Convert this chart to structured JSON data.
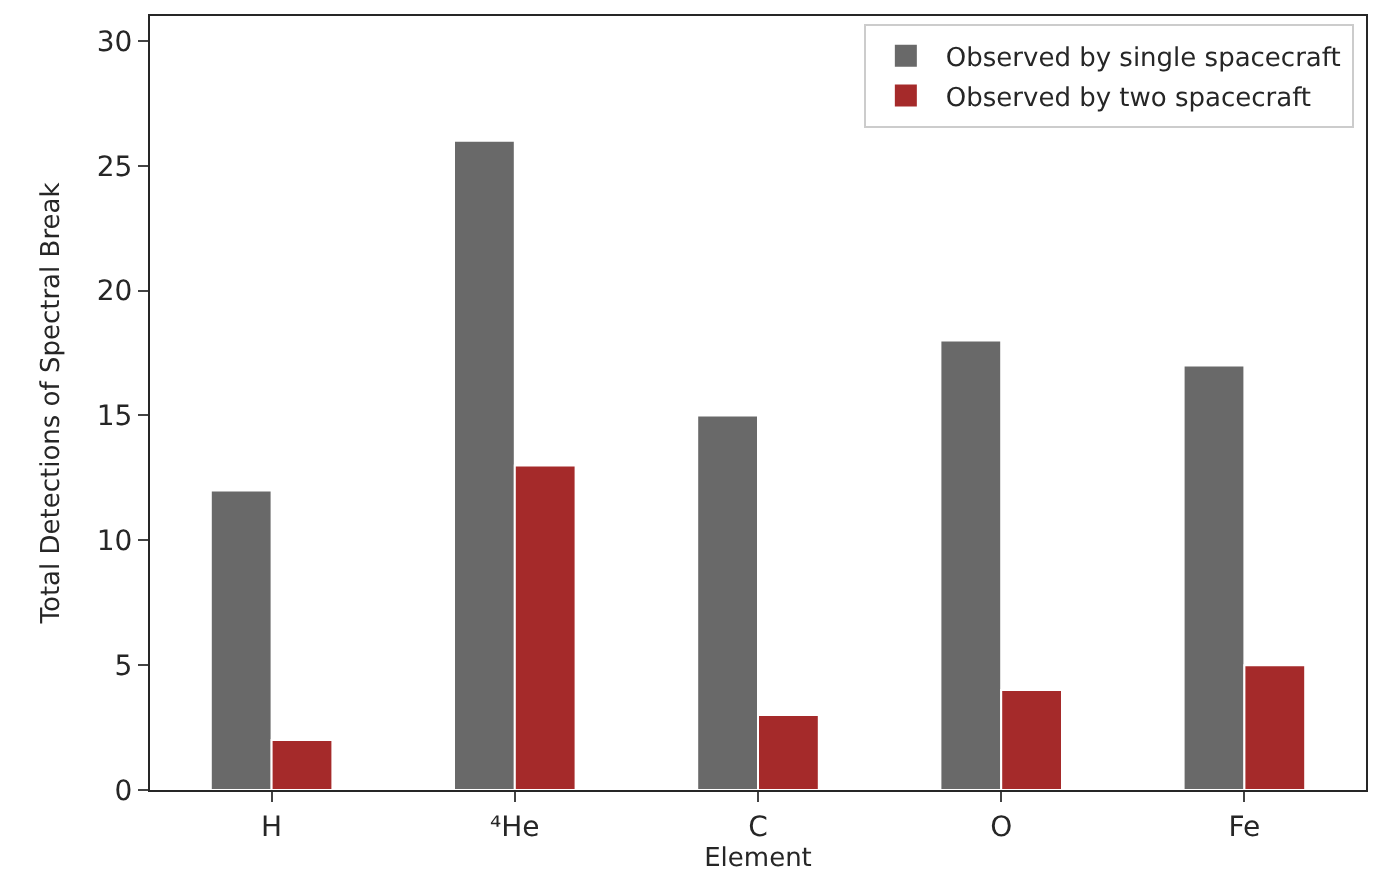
{
  "chart_data": {
    "type": "bar",
    "xlabel": "Element",
    "ylabel": "Total Detections of Spectral Break",
    "categories": [
      "H",
      "⁴He",
      "C",
      "O",
      "Fe"
    ],
    "series": [
      {
        "name": "Observed by single spacecraft",
        "color": "#696969",
        "values": [
          12,
          26,
          15,
          18,
          17
        ]
      },
      {
        "name": "Observed by two spacecraft",
        "color": "#a52a2a",
        "values": [
          2,
          13,
          3,
          4,
          5
        ]
      }
    ],
    "ylim": [
      0,
      31
    ],
    "yticks": [
      0,
      5,
      10,
      15,
      20,
      25,
      30
    ],
    "legend": "top right"
  }
}
